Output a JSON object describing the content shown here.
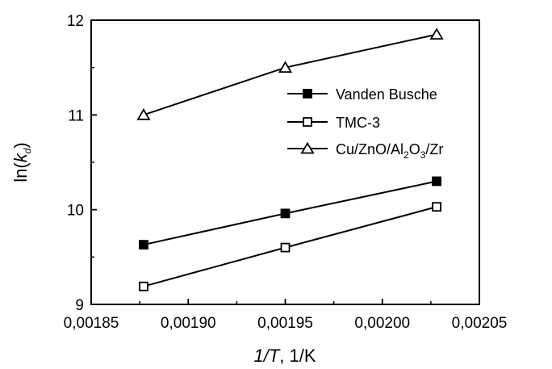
{
  "chart_data": {
    "type": "line",
    "xlabel": {
      "italic": "1/T",
      "rest": ", 1/K"
    },
    "ylabel": {
      "pre": "ln(",
      "italic": "k",
      "sub": "d",
      "post": ")"
    },
    "xlim": [
      0.00185,
      0.00205
    ],
    "ylim": [
      9,
      12
    ],
    "x_ticks": [
      {
        "value": 0.00185,
        "label": "0,00185"
      },
      {
        "value": 0.0019,
        "label": "0,00190"
      },
      {
        "value": 0.00195,
        "label": "0,00195"
      },
      {
        "value": 0.002,
        "label": "0,00200"
      },
      {
        "value": 0.00205,
        "label": "0,00205"
      }
    ],
    "y_ticks": [
      {
        "value": 9,
        "label": "9"
      },
      {
        "value": 10,
        "label": "10"
      },
      {
        "value": 11,
        "label": "11"
      },
      {
        "value": 12,
        "label": "12"
      }
    ],
    "legend_placement": "center-right",
    "series": [
      {
        "name": "Vanden Busche",
        "marker": "filled-square",
        "x": [
          0.001877,
          0.00195,
          0.002028
        ],
        "y": [
          9.63,
          9.96,
          10.3
        ]
      },
      {
        "name": "TMC-3",
        "marker": "open-square",
        "x": [
          0.001877,
          0.00195,
          0.002028
        ],
        "y": [
          9.19,
          9.6,
          10.03
        ]
      },
      {
        "name_parts": [
          {
            "t": "Cu/ZnO/Al"
          },
          {
            "t": "2",
            "sub": true
          },
          {
            "t": "O"
          },
          {
            "t": "3",
            "sub": true
          },
          {
            "t": "/Zr"
          }
        ],
        "marker": "open-triangle",
        "x": [
          0.001877,
          0.00195,
          0.002028
        ],
        "y": [
          11,
          11.5,
          11.85
        ]
      }
    ]
  }
}
